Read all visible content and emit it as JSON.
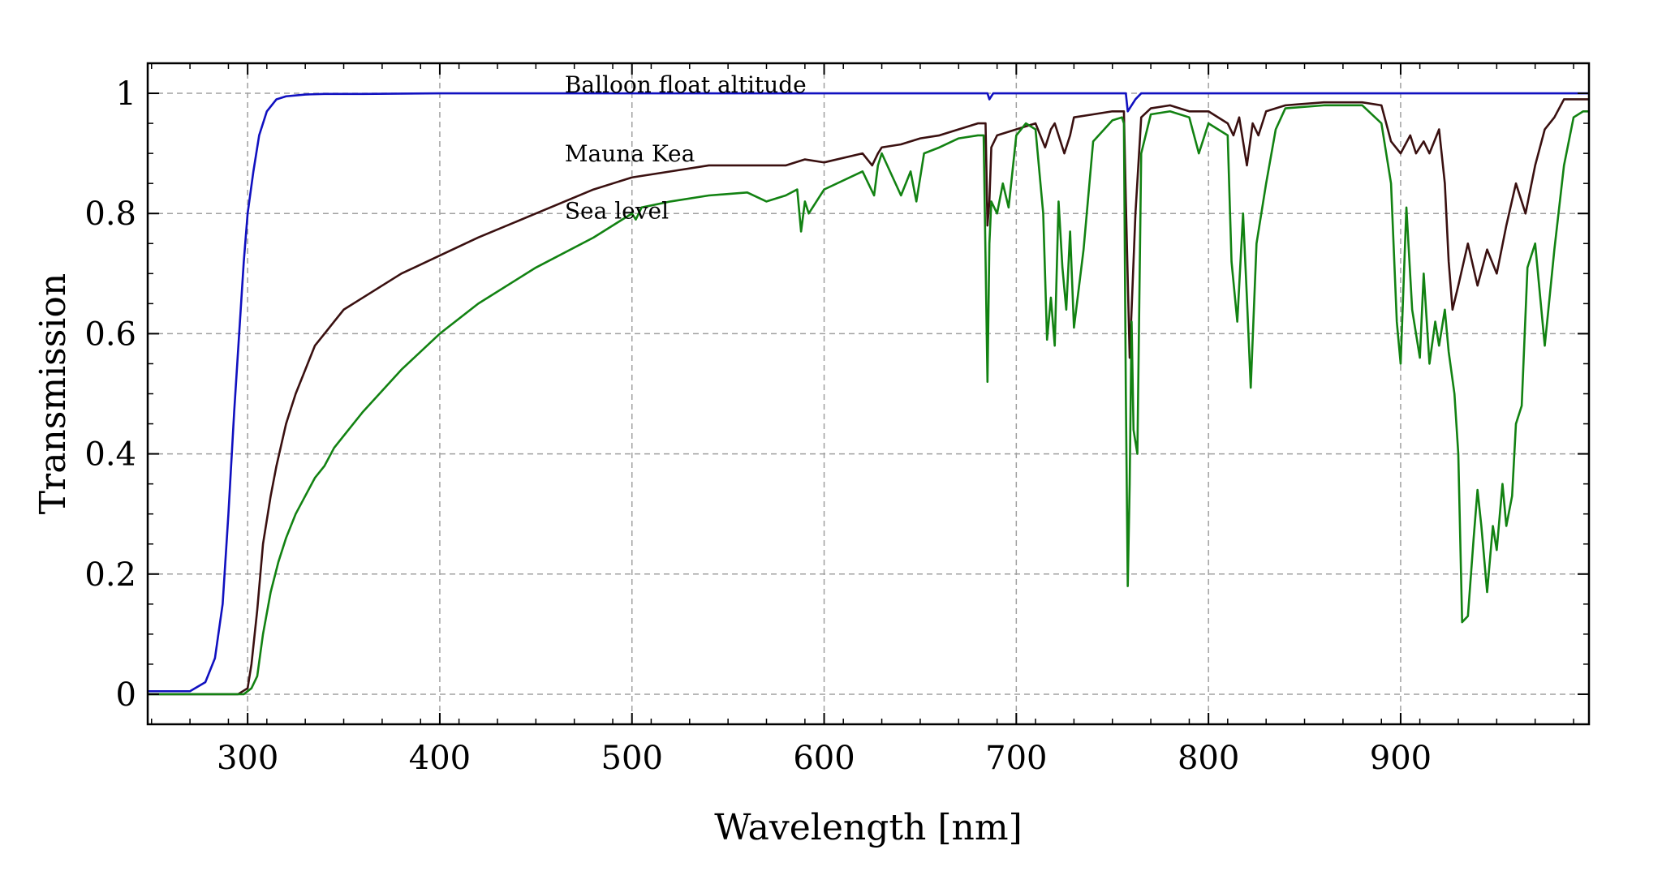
{
  "chart_data": {
    "type": "line",
    "title": "",
    "xlabel": "Wavelength [nm]",
    "ylabel": "Transmission",
    "xlim": [
      248,
      998
    ],
    "ylim": [
      -0.05,
      1.05
    ],
    "xticks": [
      300,
      400,
      500,
      600,
      700,
      800,
      900
    ],
    "yticks": [
      0,
      0.2,
      0.4,
      0.6,
      0.8,
      1
    ],
    "xtick_labels": [
      "300",
      "400",
      "500",
      "600",
      "700",
      "800",
      "900"
    ],
    "ytick_labels": [
      "0",
      "0.2",
      "0.4",
      "0.6",
      "0.8",
      "1"
    ],
    "grid": true,
    "legend": "none (series labeled by inline annotations)",
    "annotations": [
      {
        "text": "Balloon float altitude",
        "x": 465,
        "y": 1.015
      },
      {
        "text": "Mauna Kea",
        "x": 465,
        "y": 0.9
      },
      {
        "text": "Sea level",
        "x": 465,
        "y": 0.805
      }
    ],
    "series": [
      {
        "name": "Balloon float altitude",
        "color": "#1010c0",
        "x": [
          248,
          270,
          278,
          283,
          287,
          290,
          293,
          296,
          298,
          300,
          303,
          306,
          310,
          315,
          320,
          330,
          340,
          360,
          400,
          500,
          600,
          685,
          686,
          688,
          700,
          750,
          757,
          758,
          759,
          760,
          762,
          765,
          770,
          800,
          900,
          998
        ],
        "y": [
          0.005,
          0.005,
          0.02,
          0.06,
          0.15,
          0.3,
          0.47,
          0.62,
          0.72,
          0.8,
          0.87,
          0.93,
          0.97,
          0.99,
          0.995,
          0.998,
          0.999,
          0.999,
          1.0,
          1.0,
          1.0,
          1.0,
          0.99,
          1.0,
          1.0,
          1.0,
          1.0,
          0.97,
          0.975,
          0.98,
          0.99,
          1.0,
          1.0,
          1.0,
          1.0,
          1.0
        ]
      },
      {
        "name": "Mauna Kea",
        "color": "#3a1010",
        "x": [
          248,
          295,
          300,
          302,
          305,
          308,
          312,
          315,
          320,
          325,
          330,
          335,
          340,
          345,
          350,
          360,
          380,
          400,
          420,
          450,
          480,
          500,
          520,
          540,
          560,
          580,
          590,
          600,
          620,
          625,
          628,
          630,
          640,
          650,
          660,
          670,
          680,
          684,
          685,
          686,
          687,
          690,
          700,
          710,
          715,
          718,
          720,
          725,
          728,
          730,
          740,
          750,
          756,
          757,
          758,
          759,
          760,
          762,
          765,
          770,
          780,
          790,
          800,
          810,
          813,
          816,
          820,
          823,
          826,
          830,
          840,
          860,
          880,
          890,
          895,
          900,
          905,
          908,
          912,
          915,
          920,
          923,
          925,
          927,
          930,
          935,
          940,
          945,
          950,
          955,
          960,
          965,
          970,
          975,
          980,
          985,
          990,
          998
        ],
        "y": [
          0.0,
          0.0,
          0.01,
          0.05,
          0.14,
          0.25,
          0.33,
          0.38,
          0.45,
          0.5,
          0.54,
          0.58,
          0.6,
          0.62,
          0.64,
          0.66,
          0.7,
          0.73,
          0.76,
          0.8,
          0.84,
          0.86,
          0.87,
          0.88,
          0.88,
          0.88,
          0.89,
          0.885,
          0.9,
          0.88,
          0.9,
          0.91,
          0.915,
          0.925,
          0.93,
          0.94,
          0.95,
          0.95,
          0.78,
          0.82,
          0.91,
          0.93,
          0.94,
          0.95,
          0.91,
          0.94,
          0.95,
          0.9,
          0.93,
          0.96,
          0.965,
          0.97,
          0.97,
          0.82,
          0.69,
          0.56,
          0.64,
          0.8,
          0.96,
          0.975,
          0.98,
          0.97,
          0.97,
          0.95,
          0.93,
          0.96,
          0.88,
          0.95,
          0.93,
          0.97,
          0.98,
          0.985,
          0.985,
          0.98,
          0.92,
          0.9,
          0.93,
          0.9,
          0.92,
          0.9,
          0.94,
          0.85,
          0.72,
          0.64,
          0.68,
          0.75,
          0.68,
          0.74,
          0.7,
          0.78,
          0.85,
          0.8,
          0.88,
          0.94,
          0.96,
          0.99,
          0.99,
          0.99
        ]
      },
      {
        "name": "Sea level",
        "color": "#128212",
        "x": [
          248,
          298,
          302,
          305,
          308,
          312,
          316,
          320,
          325,
          330,
          335,
          340,
          345,
          350,
          360,
          380,
          400,
          420,
          450,
          480,
          500,
          502,
          505,
          520,
          540,
          560,
          570,
          580,
          586,
          588,
          590,
          592,
          600,
          620,
          626,
          628,
          630,
          640,
          645,
          648,
          650,
          652,
          660,
          670,
          680,
          683,
          685,
          686,
          687,
          690,
          693,
          696,
          700,
          705,
          710,
          714,
          716,
          718,
          720,
          722,
          724,
          726,
          728,
          730,
          735,
          740,
          750,
          755,
          756,
          757,
          758,
          759,
          760,
          761,
          763,
          765,
          770,
          780,
          790,
          795,
          800,
          810,
          812,
          815,
          818,
          820,
          822,
          825,
          830,
          835,
          840,
          860,
          880,
          890,
          895,
          898,
          900,
          903,
          906,
          910,
          912,
          915,
          918,
          920,
          923,
          925,
          928,
          930,
          932,
          935,
          938,
          940,
          942,
          945,
          948,
          950,
          953,
          955,
          958,
          960,
          963,
          966,
          970,
          975,
          980,
          985,
          990,
          995,
          998
        ],
        "y": [
          0.0,
          0.0,
          0.01,
          0.03,
          0.1,
          0.17,
          0.22,
          0.26,
          0.3,
          0.33,
          0.36,
          0.38,
          0.41,
          0.43,
          0.47,
          0.54,
          0.6,
          0.65,
          0.71,
          0.76,
          0.8,
          0.79,
          0.81,
          0.82,
          0.83,
          0.835,
          0.82,
          0.83,
          0.84,
          0.77,
          0.82,
          0.8,
          0.84,
          0.87,
          0.83,
          0.88,
          0.9,
          0.83,
          0.87,
          0.82,
          0.86,
          0.9,
          0.91,
          0.925,
          0.93,
          0.93,
          0.52,
          0.75,
          0.82,
          0.8,
          0.85,
          0.81,
          0.93,
          0.95,
          0.94,
          0.8,
          0.59,
          0.66,
          0.58,
          0.82,
          0.71,
          0.64,
          0.77,
          0.61,
          0.74,
          0.92,
          0.955,
          0.96,
          0.95,
          0.5,
          0.18,
          0.35,
          0.62,
          0.44,
          0.4,
          0.9,
          0.965,
          0.97,
          0.96,
          0.9,
          0.95,
          0.93,
          0.72,
          0.62,
          0.8,
          0.66,
          0.51,
          0.75,
          0.85,
          0.94,
          0.975,
          0.98,
          0.98,
          0.95,
          0.85,
          0.62,
          0.55,
          0.81,
          0.64,
          0.56,
          0.7,
          0.55,
          0.62,
          0.58,
          0.64,
          0.57,
          0.5,
          0.4,
          0.12,
          0.13,
          0.26,
          0.34,
          0.28,
          0.17,
          0.28,
          0.24,
          0.35,
          0.28,
          0.33,
          0.45,
          0.48,
          0.71,
          0.75,
          0.58,
          0.74,
          0.88,
          0.96,
          0.97,
          0.97
        ]
      }
    ]
  }
}
